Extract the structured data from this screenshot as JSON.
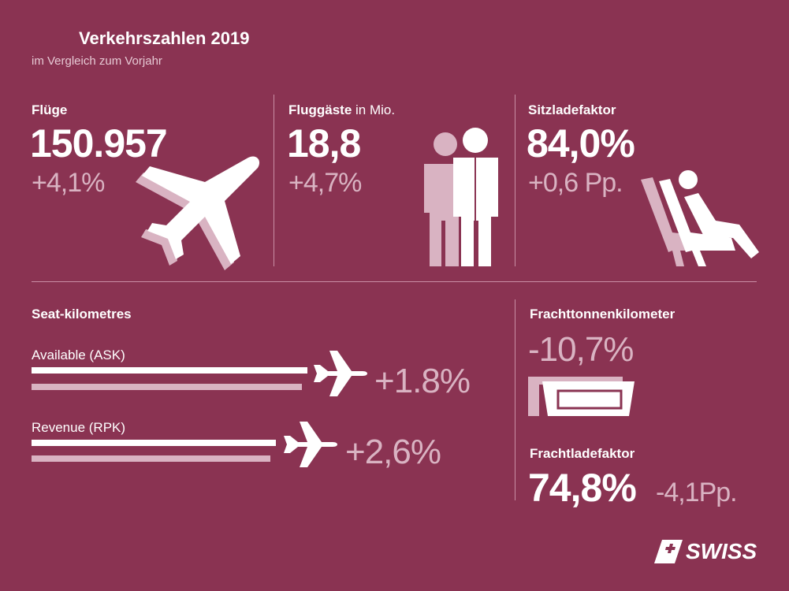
{
  "header": {
    "title": "Verkehrszahlen 2019",
    "subtitle": "im Vergleich zum Vorjahr"
  },
  "kpis": [
    {
      "label": "Flüge",
      "value": "150.957",
      "change": "+4,1%"
    },
    {
      "label": "Fluggäste",
      "unit": "in Mio.",
      "value": "18,8",
      "change": "+4,7%"
    },
    {
      "label": "Sitzladefaktor",
      "value": "84,0%",
      "change": "+0,6 Pp."
    }
  ],
  "seat_km": {
    "title": "Seat-kilometres",
    "rows": [
      {
        "label": "Available (ASK)",
        "change": "+1.8%"
      },
      {
        "label": "Revenue (RPK)",
        "change": "+2,6%"
      }
    ]
  },
  "cargo": {
    "title": "Frachttonnenkilometer",
    "change": "-10,7%",
    "load_title": "Frachtladefaktor",
    "load_value": "74,8%",
    "load_change": "-4,1Pp."
  },
  "brand": "SWISS"
}
